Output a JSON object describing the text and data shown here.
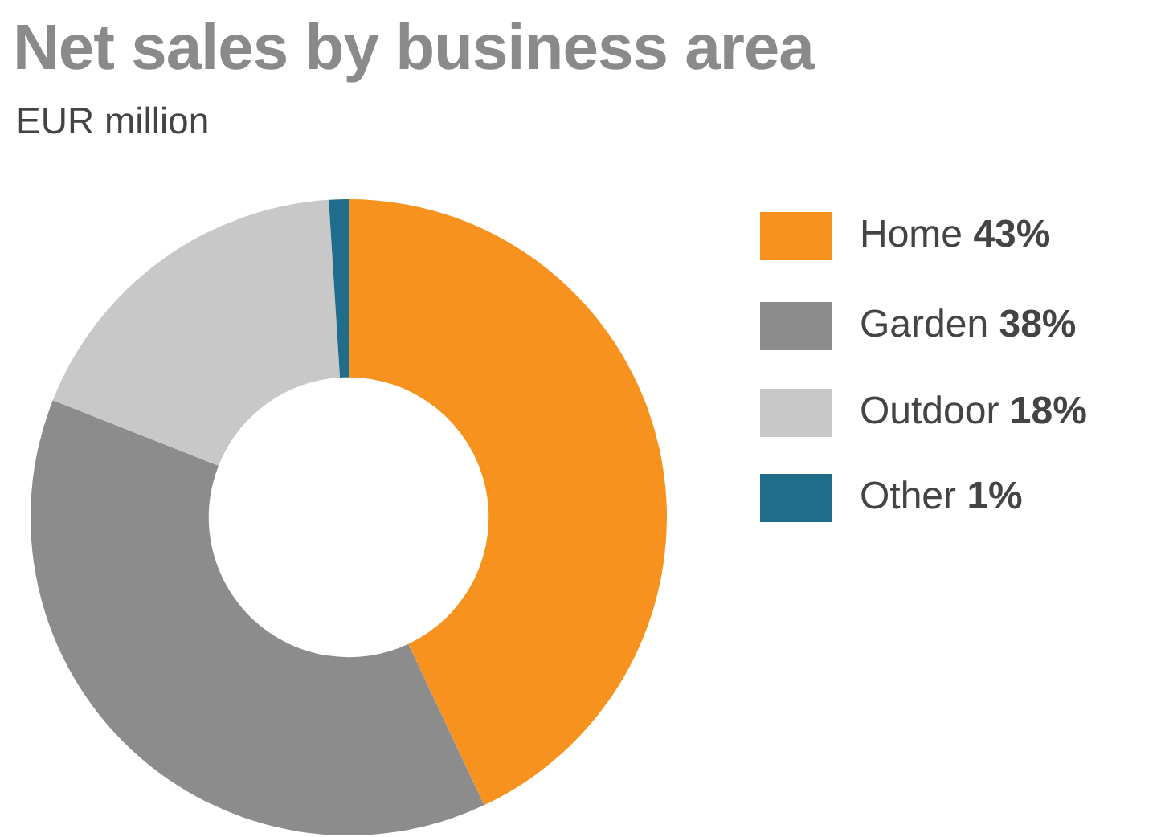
{
  "chart_data": {
    "type": "donut",
    "title": "Net sales by business area",
    "subtitle": "EUR million",
    "categories": [
      "Home",
      "Garden",
      "Outdoor",
      "Other"
    ],
    "values": [
      43,
      38,
      18,
      1
    ],
    "value_labels": [
      "43%",
      "38%",
      "18%",
      "1%"
    ],
    "colors": [
      "#f7921e",
      "#8c8c8c",
      "#c8c8c8",
      "#1f6d8a"
    ],
    "legend": "right"
  }
}
